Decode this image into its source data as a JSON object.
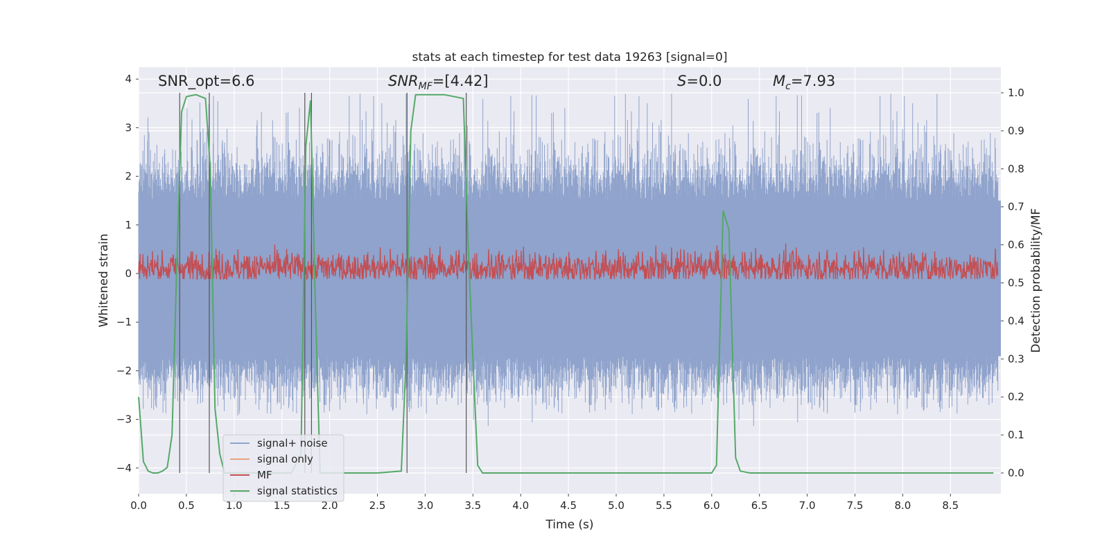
{
  "chart_data": {
    "type": "line",
    "title": "stats at each timestep for test data 19263 [signal=0]",
    "xlabel": "Time (s)",
    "ylabel_left": "Whitened strain",
    "ylabel_right": "Detection probability/MF",
    "xlim": [
      0,
      9.0
    ],
    "ylim_left": [
      -4.2,
      4.2
    ],
    "ylim_right": [
      -0.05,
      1.04
    ],
    "xticks": [
      "0.0",
      "0.5",
      "1.0",
      "1.5",
      "2.0",
      "2.5",
      "3.0",
      "3.5",
      "4.0",
      "4.5",
      "5.0",
      "5.5",
      "6.0",
      "6.5",
      "7.0",
      "7.5",
      "8.0",
      "8.5"
    ],
    "yticks_left": [
      "−4",
      "−3",
      "−2",
      "−1",
      "0",
      "1",
      "2",
      "3",
      "4"
    ],
    "yticks_right": [
      "0.0",
      "0.1",
      "0.2",
      "0.3",
      "0.4",
      "0.5",
      "0.6",
      "0.7",
      "0.8",
      "0.9",
      "1.0"
    ],
    "grid": true,
    "legend_position": "lower-left",
    "annotations": {
      "snr_opt": "SNR_opt=6.6",
      "snr_mf": "SNR_MF=[4.42]",
      "snr_mf_pre": "SNR",
      "snr_mf_sub": "MF",
      "snr_mf_post": "=[4.42]",
      "s_var": "S",
      "s_val": "=0.0",
      "mc_var": "M",
      "mc_sub": "c",
      "mc_val": "=7.93"
    },
    "series": [
      {
        "name": "signal+ noise",
        "color": "#8fa3cc",
        "axis": "left",
        "description_range": [
          -2.9,
          3.7
        ],
        "typical_envelope": [
          -1.7,
          1.5
        ]
      },
      {
        "name": "signal only",
        "color": "#e8a182",
        "axis": "left",
        "values": []
      },
      {
        "name": "MF",
        "color": "#c44e52",
        "axis": "right",
        "mean": 0.54,
        "range": [
          0.51,
          0.62
        ]
      },
      {
        "name": "signal statistics",
        "color": "#55a868",
        "axis": "right",
        "x": [
          0.0,
          0.05,
          0.1,
          0.15,
          0.2,
          0.25,
          0.3,
          0.35,
          0.4,
          0.45,
          0.5,
          0.6,
          0.7,
          0.75,
          0.8,
          0.85,
          0.9,
          1.0,
          1.2,
          1.4,
          1.6,
          1.7,
          1.75,
          1.8,
          1.85,
          1.9,
          2.0,
          2.5,
          2.75,
          2.8,
          2.85,
          2.9,
          3.2,
          3.4,
          3.45,
          3.5,
          3.55,
          3.6,
          4.0,
          5.0,
          6.0,
          6.05,
          6.12,
          6.18,
          6.25,
          6.3,
          6.4,
          7.0,
          8.0,
          8.95
        ],
        "values": [
          0.2,
          0.03,
          0.005,
          0.0,
          0.0,
          0.005,
          0.015,
          0.1,
          0.55,
          0.95,
          0.99,
          0.995,
          0.985,
          0.8,
          0.17,
          0.05,
          0.0,
          0.0,
          0.0,
          0.0,
          0.0,
          0.05,
          0.86,
          0.98,
          0.45,
          0.0,
          0.0,
          0.0,
          0.005,
          0.3,
          0.9,
          0.995,
          0.995,
          0.985,
          0.6,
          0.3,
          0.02,
          0.0,
          0.0,
          0.0,
          0.0,
          0.02,
          0.69,
          0.64,
          0.04,
          0.005,
          0.0,
          0.0,
          0.0,
          0.0
        ]
      }
    ],
    "vertical_markers_x": [
      0.43,
      0.74,
      1.74,
      1.81,
      2.81,
      3.43
    ]
  }
}
